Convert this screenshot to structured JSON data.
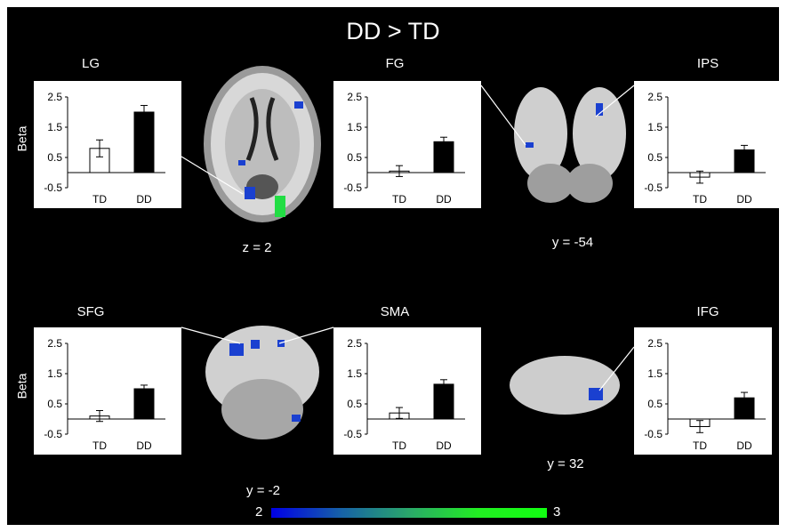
{
  "figure_title": "DD > TD",
  "colorbar": {
    "min_label": "2",
    "max_label": "3",
    "colors": [
      "#0000e6",
      "#2aa86a",
      "#11ff11"
    ]
  },
  "slice_labels": {
    "axial": "z = 2",
    "coronal_top": "y = -54",
    "coronal_bottom_left": "y = -2",
    "coronal_bottom_right": "y = 32"
  },
  "brain_images": [
    "axial-slice-brain",
    "coronal-posterior-brain",
    "coronal-frontal-brain",
    "sagittal-brain"
  ],
  "ylabel": "Beta",
  "chart_data": [
    {
      "type": "bar",
      "title": "LG",
      "categories": [
        "TD",
        "DD"
      ],
      "values": [
        0.8,
        2.0
      ],
      "errors": [
        0.28,
        0.22
      ],
      "ylim": [
        -0.5,
        2.5
      ],
      "yticks": [
        "2.5",
        "1.5",
        "0.5",
        "-0.5"
      ],
      "colors": [
        "#ffffff",
        "#000000"
      ],
      "ylabel": "Beta"
    },
    {
      "type": "bar",
      "title": "FG",
      "categories": [
        "TD",
        "DD"
      ],
      "values": [
        0.05,
        1.02
      ],
      "errors": [
        0.18,
        0.15
      ],
      "ylim": [
        -0.5,
        2.5
      ],
      "yticks": [
        "2.5",
        "1.5",
        "0.5",
        "-0.5"
      ],
      "colors": [
        "#ffffff",
        "#000000"
      ]
    },
    {
      "type": "bar",
      "title": "IPS",
      "categories": [
        "TD",
        "DD"
      ],
      "values": [
        -0.15,
        0.75
      ],
      "errors": [
        0.2,
        0.15
      ],
      "ylim": [
        -0.5,
        2.5
      ],
      "yticks": [
        "2.5",
        "1.5",
        "0.5",
        "-0.5"
      ],
      "colors": [
        "#ffffff",
        "#000000"
      ]
    },
    {
      "type": "bar",
      "title": "SFG",
      "categories": [
        "TD",
        "DD"
      ],
      "values": [
        0.1,
        1.0
      ],
      "errors": [
        0.18,
        0.12
      ],
      "ylim": [
        -0.5,
        2.5
      ],
      "yticks": [
        "2.5",
        "1.5",
        "0.5",
        "-0.5"
      ],
      "colors": [
        "#ffffff",
        "#000000"
      ],
      "ylabel": "Beta"
    },
    {
      "type": "bar",
      "title": "SMA",
      "categories": [
        "TD",
        "DD"
      ],
      "values": [
        0.2,
        1.15
      ],
      "errors": [
        0.18,
        0.15
      ],
      "ylim": [
        -0.5,
        2.5
      ],
      "yticks": [
        "2.5",
        "1.5",
        "0.5",
        "-0.5"
      ],
      "colors": [
        "#ffffff",
        "#000000"
      ]
    },
    {
      "type": "bar",
      "title": "IFG",
      "categories": [
        "TD",
        "DD"
      ],
      "values": [
        -0.25,
        0.7
      ],
      "errors": [
        0.2,
        0.18
      ],
      "ylim": [
        -0.5,
        2.5
      ],
      "yticks": [
        "2.5",
        "1.5",
        "0.5",
        "-0.5"
      ],
      "colors": [
        "#ffffff",
        "#000000"
      ]
    }
  ]
}
